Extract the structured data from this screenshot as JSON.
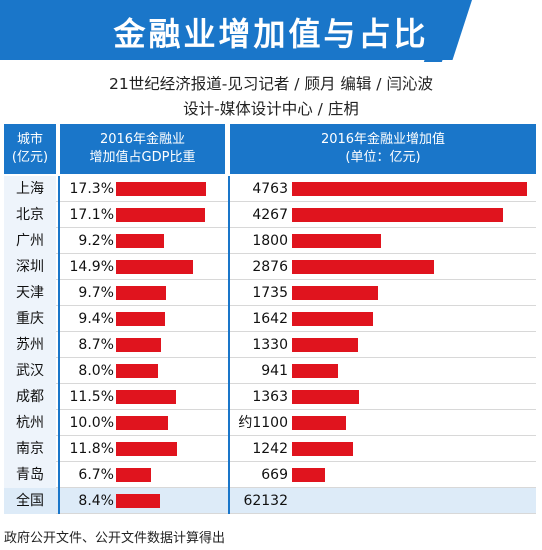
{
  "header": {
    "title": "金融业增加值与占比",
    "credit_line1": "21世纪经济报道-见习记者 / 顾月    编辑 / 闫沁波",
    "credit_line2": "设计-媒体设计中心 / 庄枂"
  },
  "table_header": {
    "city_line1": "城市",
    "city_line2": "(亿元)",
    "share_line1": "2016年金融业",
    "share_line2": "增加值占GDP比重",
    "value_line1": "2016年金融业增加值",
    "value_line2": "(单位：亿元)"
  },
  "chart_data": {
    "type": "table",
    "categories": [
      "上海",
      "北京",
      "广州",
      "深圳",
      "天津",
      "重庆",
      "苏州",
      "武汉",
      "成都",
      "杭州",
      "南京",
      "青岛",
      "全国"
    ],
    "series": [
      {
        "name": "2016年金融业增加值占GDP比重",
        "values": [
          17.3,
          17.1,
          9.2,
          14.9,
          9.7,
          9.4,
          8.7,
          8.0,
          11.5,
          10.0,
          11.8,
          6.7,
          8.4
        ],
        "labels": [
          "17.3%",
          "17.1%",
          "9.2%",
          "14.9%",
          "9.7%",
          "9.4%",
          "8.7%",
          "8.0%",
          "11.5%",
          "10.0%",
          "11.8%",
          "6.7%",
          "8.4%"
        ]
      },
      {
        "name": "2016年金融业增加值",
        "values": [
          4763,
          4267,
          1800,
          2876,
          1735,
          1642,
          1330,
          941,
          1363,
          1100,
          1242,
          669,
          62132
        ],
        "labels": [
          "4763",
          "4267",
          "1800",
          "2876",
          "1735",
          "1642",
          "1330",
          "941",
          "1363",
          "约1100",
          "1242",
          "669",
          "62132"
        ],
        "bar_shown": [
          true,
          true,
          true,
          true,
          true,
          true,
          true,
          true,
          true,
          true,
          true,
          true,
          false
        ]
      }
    ],
    "colors": {
      "header": "#1a76c9",
      "bar": "#e0141e",
      "total_row": "#ddebf8"
    }
  },
  "footer": {
    "source": "政府公开文件、公开文件数据计算得出"
  }
}
